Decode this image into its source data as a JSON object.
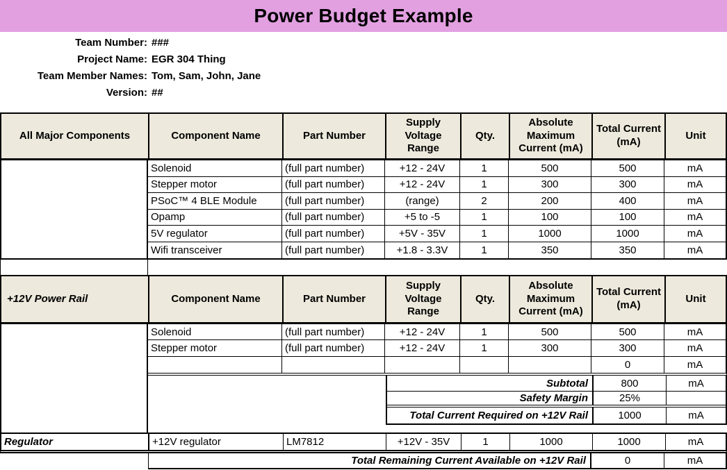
{
  "title": "Power Budget Example",
  "colors": {
    "banner_pink": "#E2A0E1",
    "header_beige": "#EDE9DC",
    "border_black": "#000000"
  },
  "info": {
    "rows": [
      {
        "label": "Team Number:",
        "value": "###"
      },
      {
        "label": "Project Name:",
        "value": "EGR 304 Thing"
      },
      {
        "label": "Team Member Names:",
        "value": "Tom, Sam, John, Jane"
      },
      {
        "label": "Version:",
        "value": "##"
      }
    ]
  },
  "columns": {
    "component": "Component Name",
    "part": "Part Number",
    "supply": "Supply Voltage Range",
    "qty": "Qty.",
    "abs_max": "Absolute Maximum Current (mA)",
    "total": "Total Current (mA)",
    "unit": "Unit"
  },
  "section_labels": {
    "all": "All Major Components",
    "rail": "+12V Power Rail",
    "regulator": "Regulator"
  },
  "table_all": {
    "rows": [
      [
        "Solenoid",
        "(full part number)",
        "+12 - 24V",
        "1",
        "500",
        "500",
        "mA"
      ],
      [
        "Stepper motor",
        "(full part number)",
        "+12 - 24V",
        "1",
        "300",
        "300",
        "mA"
      ],
      [
        "PSoC™ 4 BLE Module",
        "(full part number)",
        "(range)",
        "2",
        "200",
        "400",
        "mA"
      ],
      [
        "Opamp",
        "(full part number)",
        "+5 to -5",
        "1",
        "100",
        "100",
        "mA"
      ],
      [
        "5V regulator",
        "(full part number)",
        "+5V - 35V",
        "1",
        "1000",
        "1000",
        "mA"
      ],
      [
        "Wifi transceiver",
        "(full part number)",
        "+1.8 - 3.3V",
        "1",
        "350",
        "350",
        "mA"
      ]
    ]
  },
  "table_rail": {
    "rows": [
      [
        "Solenoid",
        "(full part number)",
        "+12 - 24V",
        "1",
        "500",
        "500",
        "mA"
      ],
      [
        "Stepper motor",
        "(full part number)",
        "+12 - 24V",
        "1",
        "300",
        "300",
        "mA"
      ],
      [
        "",
        "",
        "",
        "",
        "",
        "0",
        "mA"
      ]
    ],
    "summary": [
      {
        "label": "Subtotal",
        "value": "800",
        "unit": "mA"
      },
      {
        "label": "Safety Margin",
        "value": "25%",
        "unit": ""
      },
      {
        "label": "Total Current Required on +12V Rail",
        "value": "1000",
        "unit": "mA"
      }
    ]
  },
  "regulator": {
    "name": "+12V regulator",
    "part": "LM7812",
    "supply": "+12V - 35V",
    "qty": "1",
    "abs_max": "1000",
    "total": "1000",
    "unit": "mA"
  },
  "final": {
    "label": "Total Remaining Current Available on +12V Rail",
    "value": "0",
    "unit": "mA"
  }
}
